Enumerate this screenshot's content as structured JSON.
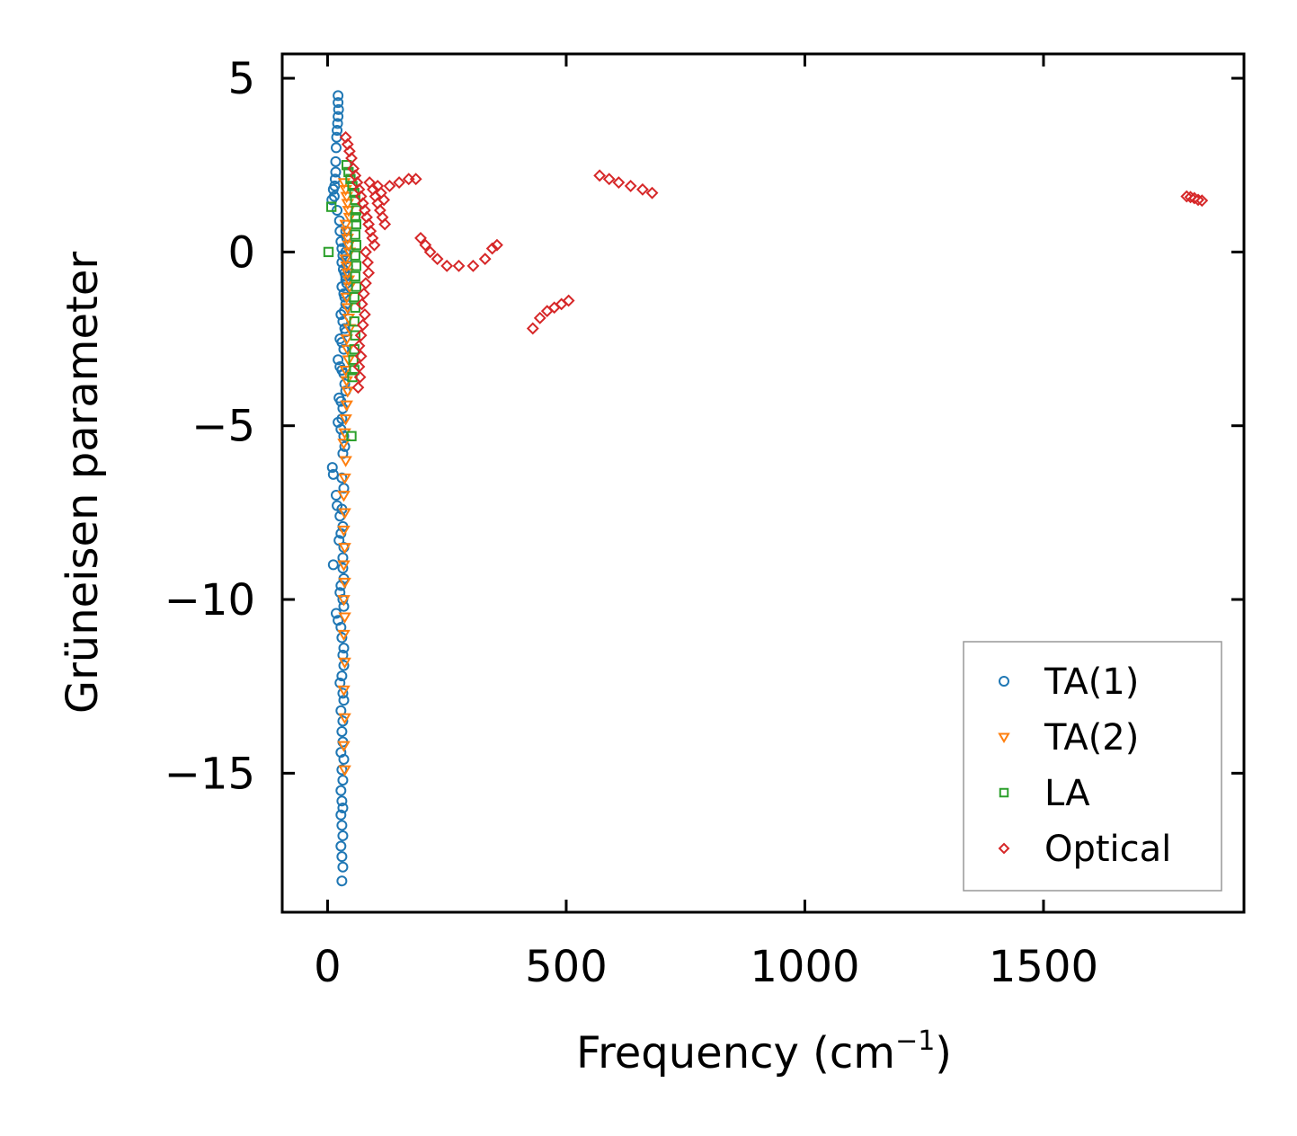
{
  "chart_data": {
    "type": "scatter",
    "title": "",
    "xlabel": "Frequency (cm",
    "xlabel_sup": "−1",
    "xlabel_close": ")",
    "ylabel": "Grüneisen parameter",
    "xlim": [
      -95,
      1920
    ],
    "ylim": [
      -19.0,
      5.7
    ],
    "xticks": [
      0,
      500,
      1000,
      1500
    ],
    "xtick_labels": [
      "0",
      "500",
      "1000",
      "1500"
    ],
    "yticks": [
      5,
      0,
      -5,
      -10,
      -15
    ],
    "ytick_labels": [
      "5",
      "0",
      "−5",
      "−10",
      "−15"
    ],
    "grid": false,
    "legend_position": "lower-right",
    "series": [
      {
        "name": "TA(1)",
        "marker": "circle",
        "color": "#1f77b4",
        "points": [
          [
            22,
            4.5
          ],
          [
            22,
            4.3
          ],
          [
            23,
            4.1
          ],
          [
            22,
            3.9
          ],
          [
            21,
            3.7
          ],
          [
            20,
            3.5
          ],
          [
            19,
            3.3
          ],
          [
            18,
            3.0
          ],
          [
            17,
            2.6
          ],
          [
            17,
            2.3
          ],
          [
            16,
            2.1
          ],
          [
            15,
            1.9
          ],
          [
            12,
            1.8
          ],
          [
            9,
            1.5
          ],
          [
            14,
            1.6
          ],
          [
            20,
            1.2
          ],
          [
            25,
            0.9
          ],
          [
            26,
            0.6
          ],
          [
            28,
            0.3
          ],
          [
            30,
            0.1
          ],
          [
            32,
            -0.1
          ],
          [
            30,
            -0.3
          ],
          [
            33,
            -0.5
          ],
          [
            36,
            -0.6
          ],
          [
            38,
            -0.8
          ],
          [
            30,
            -1.0
          ],
          [
            34,
            -1.2
          ],
          [
            36,
            -1.3
          ],
          [
            38,
            -1.5
          ],
          [
            35,
            -1.7
          ],
          [
            28,
            -1.8
          ],
          [
            32,
            -2.0
          ],
          [
            36,
            -2.2
          ],
          [
            38,
            -2.3
          ],
          [
            26,
            -2.5
          ],
          [
            30,
            -2.6
          ],
          [
            34,
            -2.8
          ],
          [
            22,
            -3.1
          ],
          [
            26,
            -3.3
          ],
          [
            30,
            -3.4
          ],
          [
            34,
            -3.5
          ],
          [
            36,
            -3.8
          ],
          [
            38,
            -4.0
          ],
          [
            24,
            -4.2
          ],
          [
            28,
            -4.3
          ],
          [
            32,
            -4.5
          ],
          [
            30,
            -4.8
          ],
          [
            22,
            -4.9
          ],
          [
            28,
            -5.1
          ],
          [
            34,
            -5.3
          ],
          [
            36,
            -5.6
          ],
          [
            32,
            -5.8
          ],
          [
            10,
            -6.2
          ],
          [
            12,
            -6.4
          ],
          [
            30,
            -6.5
          ],
          [
            34,
            -6.8
          ],
          [
            18,
            -7.0
          ],
          [
            20,
            -7.3
          ],
          [
            30,
            -7.4
          ],
          [
            26,
            -7.6
          ],
          [
            32,
            -7.9
          ],
          [
            28,
            -8.1
          ],
          [
            24,
            -8.3
          ],
          [
            34,
            -8.5
          ],
          [
            32,
            -8.8
          ],
          [
            12,
            -9.0
          ],
          [
            32,
            -9.1
          ],
          [
            34,
            -9.4
          ],
          [
            28,
            -9.6
          ],
          [
            26,
            -9.8
          ],
          [
            32,
            -10.0
          ],
          [
            34,
            -10.2
          ],
          [
            18,
            -10.4
          ],
          [
            22,
            -10.6
          ],
          [
            28,
            -10.8
          ],
          [
            30,
            -11.1
          ],
          [
            34,
            -11.4
          ],
          [
            32,
            -11.6
          ],
          [
            34,
            -11.9
          ],
          [
            30,
            -12.2
          ],
          [
            26,
            -12.4
          ],
          [
            32,
            -12.7
          ],
          [
            34,
            -12.9
          ],
          [
            28,
            -13.2
          ],
          [
            32,
            -13.5
          ],
          [
            30,
            -13.8
          ],
          [
            32,
            -14.1
          ],
          [
            28,
            -14.4
          ],
          [
            34,
            -14.6
          ],
          [
            30,
            -14.9
          ],
          [
            32,
            -15.2
          ],
          [
            28,
            -15.5
          ],
          [
            30,
            -15.8
          ],
          [
            32,
            -16.0
          ],
          [
            28,
            -16.2
          ],
          [
            30,
            -16.5
          ],
          [
            32,
            -16.8
          ],
          [
            28,
            -17.1
          ],
          [
            30,
            -17.4
          ],
          [
            32,
            -17.7
          ],
          [
            30,
            -18.1
          ],
          [
            38,
            0.6
          ],
          [
            40,
            0.4
          ],
          [
            42,
            0.2
          ],
          [
            38,
            0.0
          ],
          [
            40,
            -0.2
          ],
          [
            42,
            -0.4
          ],
          [
            38,
            -0.7
          ],
          [
            40,
            -0.9
          ]
        ]
      },
      {
        "name": "TA(2)",
        "marker": "triangle-down",
        "color": "#ff7f0e",
        "points": [
          [
            35,
            2.0
          ],
          [
            38,
            1.8
          ],
          [
            40,
            1.6
          ],
          [
            42,
            1.4
          ],
          [
            44,
            1.2
          ],
          [
            46,
            1.0
          ],
          [
            38,
            0.8
          ],
          [
            40,
            0.6
          ],
          [
            42,
            0.4
          ],
          [
            44,
            0.2
          ],
          [
            46,
            0.0
          ],
          [
            38,
            -0.2
          ],
          [
            40,
            -0.4
          ],
          [
            42,
            -0.6
          ],
          [
            44,
            -0.8
          ],
          [
            46,
            -1.0
          ],
          [
            40,
            -1.3
          ],
          [
            42,
            -1.6
          ],
          [
            44,
            -1.9
          ],
          [
            46,
            -2.2
          ],
          [
            40,
            -2.5
          ],
          [
            42,
            -2.8
          ],
          [
            44,
            -3.1
          ],
          [
            38,
            -3.4
          ],
          [
            40,
            -3.7
          ],
          [
            42,
            -4.0
          ],
          [
            40,
            -4.4
          ],
          [
            38,
            -4.8
          ],
          [
            36,
            -5.2
          ],
          [
            34,
            -5.5
          ],
          [
            38,
            -6.0
          ],
          [
            36,
            -6.5
          ],
          [
            34,
            -7.0
          ],
          [
            36,
            -7.5
          ],
          [
            34,
            -8.0
          ],
          [
            36,
            -8.5
          ],
          [
            34,
            -9.0
          ],
          [
            36,
            -9.5
          ],
          [
            34,
            -10.0
          ],
          [
            36,
            -10.5
          ],
          [
            34,
            -11.0
          ],
          [
            36,
            -11.8
          ],
          [
            34,
            -12.6
          ],
          [
            36,
            -13.4
          ],
          [
            34,
            -14.2
          ],
          [
            36,
            -14.9
          ]
        ]
      },
      {
        "name": "LA",
        "marker": "square",
        "color": "#2ca02c",
        "points": [
          [
            2,
            0.0
          ],
          [
            8,
            1.3
          ],
          [
            40,
            2.5
          ],
          [
            44,
            2.3
          ],
          [
            48,
            2.1
          ],
          [
            52,
            1.9
          ],
          [
            56,
            1.7
          ],
          [
            58,
            1.5
          ],
          [
            60,
            1.2
          ],
          [
            58,
            1.0
          ],
          [
            60,
            0.8
          ],
          [
            58,
            0.5
          ],
          [
            60,
            0.2
          ],
          [
            58,
            -0.1
          ],
          [
            60,
            -0.4
          ],
          [
            58,
            -0.7
          ],
          [
            60,
            -1.0
          ],
          [
            56,
            -1.3
          ],
          [
            58,
            -1.6
          ],
          [
            56,
            -2.0
          ],
          [
            58,
            -2.4
          ],
          [
            56,
            -2.8
          ],
          [
            54,
            -3.1
          ],
          [
            56,
            -3.4
          ],
          [
            52,
            -3.6
          ],
          [
            50,
            -5.3
          ]
        ]
      },
      {
        "name": "Optical",
        "marker": "diamond",
        "color": "#d62728",
        "points": [
          [
            38,
            3.3
          ],
          [
            42,
            3.1
          ],
          [
            46,
            2.9
          ],
          [
            50,
            2.7
          ],
          [
            54,
            2.4
          ],
          [
            58,
            2.2
          ],
          [
            62,
            2.0
          ],
          [
            66,
            1.8
          ],
          [
            70,
            1.6
          ],
          [
            74,
            1.4
          ],
          [
            78,
            1.2
          ],
          [
            82,
            1.0
          ],
          [
            86,
            0.8
          ],
          [
            90,
            0.6
          ],
          [
            94,
            0.4
          ],
          [
            98,
            0.2
          ],
          [
            80,
            0.0
          ],
          [
            84,
            -0.3
          ],
          [
            86,
            -0.6
          ],
          [
            80,
            -0.9
          ],
          [
            76,
            -1.2
          ],
          [
            72,
            -1.5
          ],
          [
            78,
            -1.8
          ],
          [
            74,
            -2.1
          ],
          [
            70,
            -2.4
          ],
          [
            66,
            -2.7
          ],
          [
            70,
            -3.0
          ],
          [
            66,
            -3.3
          ],
          [
            68,
            -3.6
          ],
          [
            64,
            -3.9
          ],
          [
            100,
            1.6
          ],
          [
            105,
            1.4
          ],
          [
            110,
            1.2
          ],
          [
            115,
            1.0
          ],
          [
            120,
            0.8
          ],
          [
            95,
            1.8
          ],
          [
            88,
            2.0
          ],
          [
            105,
            1.9
          ],
          [
            112,
            1.7
          ],
          [
            118,
            1.5
          ],
          [
            130,
            1.9
          ],
          [
            150,
            2.0
          ],
          [
            170,
            2.1
          ],
          [
            185,
            2.1
          ],
          [
            195,
            0.4
          ],
          [
            205,
            0.2
          ],
          [
            215,
            0.0
          ],
          [
            230,
            -0.2
          ],
          [
            250,
            -0.4
          ],
          [
            275,
            -0.4
          ],
          [
            305,
            -0.4
          ],
          [
            330,
            -0.2
          ],
          [
            345,
            0.1
          ],
          [
            355,
            0.2
          ],
          [
            430,
            -2.2
          ],
          [
            445,
            -1.9
          ],
          [
            460,
            -1.7
          ],
          [
            475,
            -1.6
          ],
          [
            490,
            -1.5
          ],
          [
            505,
            -1.4
          ],
          [
            570,
            2.2
          ],
          [
            590,
            2.1
          ],
          [
            610,
            2.0
          ],
          [
            635,
            1.9
          ],
          [
            660,
            1.8
          ],
          [
            680,
            1.7
          ],
          [
            1800,
            1.6
          ],
          [
            1808,
            1.58
          ],
          [
            1816,
            1.55
          ],
          [
            1824,
            1.5
          ],
          [
            1832,
            1.48
          ]
        ]
      }
    ]
  }
}
